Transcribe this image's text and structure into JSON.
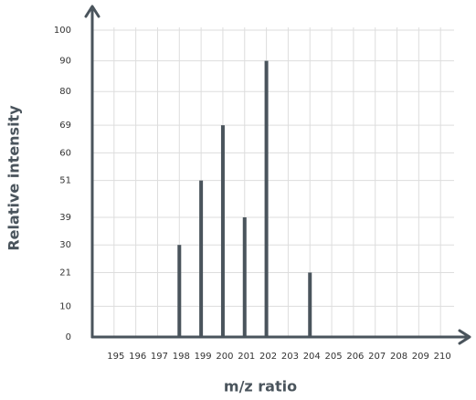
{
  "chart_data": {
    "type": "bar",
    "x_label": "m/z ratio",
    "y_label": "Relative intensity",
    "x": [
      198,
      199,
      200,
      201,
      202,
      204
    ],
    "values": [
      30,
      51,
      69,
      39,
      90,
      21
    ],
    "color": "#4a545c",
    "xlim": [
      194,
      211
    ],
    "xticks": [
      195,
      196,
      197,
      198,
      199,
      200,
      201,
      202,
      203,
      204,
      205,
      206,
      207,
      208,
      209,
      210
    ],
    "ylim": [
      0,
      100
    ],
    "yticks": [
      0,
      10,
      21,
      30,
      39,
      51,
      60,
      69,
      80,
      90,
      100
    ],
    "ytick_colors": [
      "#333",
      "#bbb",
      "#333",
      "#333",
      "#333",
      "#333",
      "#bbb",
      "#333",
      "#bbb",
      "#333",
      "#bbb"
    ],
    "grid": true
  }
}
